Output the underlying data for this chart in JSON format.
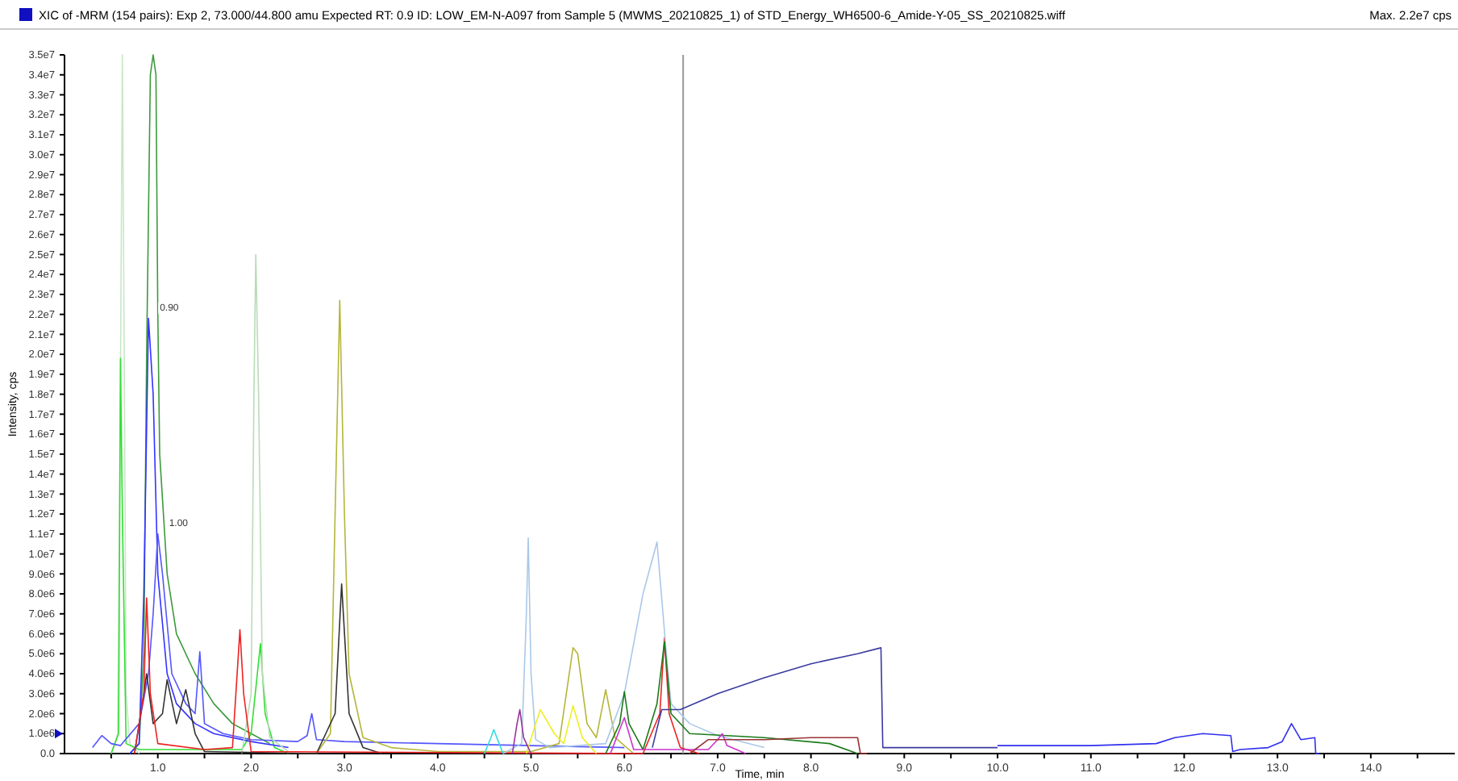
{
  "chart_data": {
    "type": "line",
    "title": "XIC of -MRM (154 pairs): Exp 2, 73.000/44.800 amu Expected RT: 0.9 ID: LOW_EM-N-A097 from Sample 5 (MWMS_20210825_1) of STD_Energy_WH6500-6_Amide-Y-05_SS_20210825.wiff",
    "xlabel": "Time, min",
    "ylabel": "Intensity, cps",
    "annotations": [
      {
        "text": "0.90",
        "x": 0.9,
        "y": 21800000
      },
      {
        "text": "1.00",
        "x": 1.0,
        "y": 11000000
      },
      "Max. 2.2e7 cps"
    ],
    "xlim": [
      0,
      14.9
    ],
    "xticks": [
      {
        "value": 0.5,
        "label": null
      },
      {
        "value": 1,
        "label": "1.0"
      },
      {
        "value": 1.5,
        "label": null
      },
      {
        "value": 2,
        "label": "2.0"
      },
      {
        "value": 2.5,
        "label": null
      },
      {
        "value": 3,
        "label": "3.0"
      },
      {
        "value": 3.5,
        "label": null
      },
      {
        "value": 4,
        "label": "4.0"
      },
      {
        "value": 4.5,
        "label": null
      },
      {
        "value": 5,
        "label": "5.0"
      },
      {
        "value": 5.5,
        "label": null
      },
      {
        "value": 6,
        "label": "6.0"
      },
      {
        "value": 6.5,
        "label": null
      },
      {
        "value": 7,
        "label": "7.0"
      },
      {
        "value": 7.5,
        "label": null
      },
      {
        "value": 8,
        "label": "8.0"
      },
      {
        "value": 8.5,
        "label": null
      },
      {
        "value": 9,
        "label": "9.0"
      },
      {
        "value": 9.5,
        "label": null
      },
      {
        "value": 10,
        "label": "10.0"
      },
      {
        "value": 10.5,
        "label": null
      },
      {
        "value": 11,
        "label": "11.0"
      },
      {
        "value": 11.5,
        "label": null
      },
      {
        "value": 12,
        "label": "12.0"
      },
      {
        "value": 12.5,
        "label": null
      },
      {
        "value": 13,
        "label": "13.0"
      },
      {
        "value": 13.5,
        "label": null
      },
      {
        "value": 14,
        "label": "14.0"
      },
      {
        "value": 14.5,
        "label": null
      }
    ],
    "ylim": [
      0,
      35000000
    ],
    "yticks": [
      {
        "value": 0,
        "label": "0.0"
      },
      {
        "value": 1000000,
        "label": "1.0e6"
      },
      {
        "value": 2000000,
        "label": "2.0e6"
      },
      {
        "value": 3000000,
        "label": "3.0e6"
      },
      {
        "value": 4000000,
        "label": "4.0e6"
      },
      {
        "value": 5000000,
        "label": "5.0e6"
      },
      {
        "value": 6000000,
        "label": "6.0e6"
      },
      {
        "value": 7000000,
        "label": "7.0e6"
      },
      {
        "value": 8000000,
        "label": "8.0e6"
      },
      {
        "value": 9000000,
        "label": "9.0e6"
      },
      {
        "value": 10000000,
        "label": "1.0e7"
      },
      {
        "value": 11000000,
        "label": "1.1e7"
      },
      {
        "value": 12000000,
        "label": "1.2e7"
      },
      {
        "value": 13000000,
        "label": "1.3e7"
      },
      {
        "value": 14000000,
        "label": "1.4e7"
      },
      {
        "value": 15000000,
        "label": "1.5e7"
      },
      {
        "value": 16000000,
        "label": "1.6e7"
      },
      {
        "value": 17000000,
        "label": "1.7e7"
      },
      {
        "value": 18000000,
        "label": "1.8e7"
      },
      {
        "value": 19000000,
        "label": "1.9e7"
      },
      {
        "value": 20000000,
        "label": "2.0e7"
      },
      {
        "value": 21000000,
        "label": "2.1e7"
      },
      {
        "value": 22000000,
        "label": "2.2e7"
      },
      {
        "value": 23000000,
        "label": "2.3e7"
      },
      {
        "value": 24000000,
        "label": "2.4e7"
      },
      {
        "value": 25000000,
        "label": "2.5e7"
      },
      {
        "value": 26000000,
        "label": "2.6e7"
      },
      {
        "value": 27000000,
        "label": "2.7e7"
      },
      {
        "value": 28000000,
        "label": "2.8e7"
      },
      {
        "value": 29000000,
        "label": "2.9e7"
      },
      {
        "value": 30000000,
        "label": "3.0e7"
      },
      {
        "value": 31000000,
        "label": "3.1e7"
      },
      {
        "value": 32000000,
        "label": "3.2e7"
      },
      {
        "value": 33000000,
        "label": "3.3e7"
      },
      {
        "value": 34000000,
        "label": "3.4e7"
      },
      {
        "value": 35000000,
        "label": "3.5e7"
      }
    ],
    "grid": false,
    "marker": "none",
    "line_style": "solid",
    "ref_lines": [
      {
        "axis": "x",
        "value": 6.63,
        "color": "#999999"
      }
    ],
    "series": [
      {
        "color": "#c8e6c8",
        "x": [
          0.5,
          0.57,
          0.6,
          0.62,
          0.64,
          0.66,
          0.7,
          0.8
        ],
        "values": [
          0,
          1000000,
          19000000,
          35000000,
          20000000,
          3000000,
          500000,
          0
        ]
      },
      {
        "color": "#3c9a3c",
        "x": [
          0.7,
          0.8,
          0.85,
          0.88,
          0.92,
          0.95,
          0.98,
          1.0,
          1.02,
          1.1,
          1.2,
          1.4,
          1.6,
          1.8,
          2.0,
          2.2
        ],
        "values": [
          0,
          500000,
          5000000,
          20000000,
          34000000,
          35000000,
          34000000,
          22000000,
          15000000,
          9000000,
          6000000,
          4000000,
          2500000,
          1500000,
          1000000,
          500000
        ]
      },
      {
        "color": "#33dd33",
        "x": [
          0.5,
          0.58,
          0.6,
          0.62,
          0.66,
          0.8,
          1.9,
          2.0,
          2.1,
          2.15,
          2.25,
          2.4
        ],
        "values": [
          0,
          1000000,
          19800000,
          12000000,
          500000,
          200000,
          200000,
          1000000,
          5500000,
          2000000,
          300000,
          0
        ]
      },
      {
        "color": "#3333ff",
        "x": [
          0.7,
          0.8,
          0.85,
          0.9,
          0.95,
          1.0,
          1.1,
          1.2,
          1.4,
          1.6,
          2.0,
          2.4
        ],
        "values": [
          0,
          500000,
          8000000,
          21800000,
          18000000,
          9000000,
          4000000,
          2500000,
          1500000,
          1000000,
          600000,
          300000
        ]
      },
      {
        "color": "#5555ff",
        "x": [
          0.3,
          0.4,
          0.5,
          0.6,
          0.8,
          0.9,
          0.95,
          1.0,
          1.05,
          1.15,
          1.3,
          1.4,
          1.45,
          1.5,
          1.7,
          2.0,
          2.5,
          2.6,
          2.65,
          2.7,
          3.0,
          4.0,
          5.0,
          6.0
        ],
        "values": [
          300000,
          900000,
          500000,
          400000,
          1500000,
          4000000,
          7000000,
          11000000,
          9000000,
          4000000,
          2500000,
          2000000,
          5100000,
          1500000,
          1000000,
          700000,
          600000,
          900000,
          2000000,
          700000,
          600000,
          500000,
          400000,
          300000
        ]
      },
      {
        "color": "#b8dcb8",
        "x": [
          1.9,
          2.0,
          2.03,
          2.05,
          2.08,
          2.12,
          2.2,
          2.4
        ],
        "values": [
          0,
          3000000,
          18000000,
          25000000,
          18000000,
          4000000,
          800000,
          100000
        ]
      },
      {
        "color": "#b5b53a",
        "x": [
          2.7,
          2.85,
          2.9,
          2.95,
          3.0,
          3.05,
          3.2,
          3.5,
          4.0,
          5.0,
          5.3,
          5.45,
          5.5,
          5.6,
          5.7,
          5.8,
          5.9,
          6.1
        ],
        "values": [
          0,
          1000000,
          12000000,
          22700000,
          12000000,
          4000000,
          800000,
          300000,
          100000,
          100000,
          500000,
          5300000,
          5000000,
          1500000,
          800000,
          3200000,
          800000,
          0
        ]
      },
      {
        "color": "#333333",
        "x": [
          0.75,
          0.85,
          0.88,
          0.95,
          1.05,
          1.1,
          1.2,
          1.3,
          1.4,
          1.5,
          2.7,
          2.9,
          2.97,
          3.05,
          3.2,
          3.4
        ],
        "values": [
          0,
          3000000,
          4000000,
          1500000,
          2000000,
          3700000,
          1500000,
          3200000,
          1000000,
          100000,
          0,
          2000000,
          8500000,
          2000000,
          300000,
          0
        ]
      },
      {
        "color": "#ee2222",
        "x": [
          0.75,
          0.85,
          0.88,
          0.92,
          1.0,
          1.5,
          1.8,
          1.88,
          1.92,
          2.0,
          6.2,
          6.38,
          6.43,
          6.48,
          6.6,
          6.8
        ],
        "values": [
          0,
          3000000,
          7800000,
          3000000,
          500000,
          200000,
          300000,
          6200000,
          3000000,
          100000,
          0,
          2000000,
          5800000,
          2000000,
          300000,
          0
        ]
      },
      {
        "color": "#aac8e8",
        "x": [
          4.7,
          4.9,
          4.95,
          4.97,
          5.0,
          5.05,
          5.2,
          5.8,
          6.0,
          6.2,
          6.35,
          6.45,
          6.5,
          6.7,
          7.0,
          7.5
        ],
        "values": [
          0,
          500000,
          7000000,
          10800000,
          4000000,
          700000,
          300000,
          500000,
          3000000,
          8000000,
          10600000,
          5000000,
          2500000,
          1500000,
          900000,
          300000
        ]
      },
      {
        "color": "#3a3aa0",
        "x": [
          6.3,
          6.4,
          6.6,
          7.0,
          7.5,
          8.0,
          8.5,
          8.75,
          8.77,
          9.0,
          10.0
        ],
        "values": [
          300000,
          2200000,
          2200000,
          3000000,
          3800000,
          4500000,
          5000000,
          5300000,
          300000,
          300000,
          300000
        ]
      },
      {
        "color": "#3030ee",
        "x": [
          10.0,
          11.0,
          11.7,
          11.9,
          12.2,
          12.5,
          12.52,
          12.6,
          12.9,
          13.05,
          13.15,
          13.25,
          13.4,
          13.41,
          13.45
        ],
        "values": [
          400000,
          400000,
          500000,
          800000,
          1000000,
          900000,
          100000,
          200000,
          300000,
          600000,
          1500000,
          700000,
          800000,
          0,
          0
        ]
      },
      {
        "color": "#1a7a1a",
        "x": [
          5.8,
          5.95,
          6.0,
          6.05,
          6.2,
          6.35,
          6.43,
          6.5,
          6.7,
          7.5,
          8.2,
          8.5
        ],
        "values": [
          0,
          1500000,
          3100000,
          1500000,
          200000,
          2500000,
          5600000,
          2000000,
          1000000,
          800000,
          500000,
          0
        ]
      },
      {
        "color": "#eeee22",
        "x": [
          4.95,
          5.05,
          5.1,
          5.25,
          5.35,
          5.45,
          5.55,
          5.7
        ],
        "values": [
          0,
          1500000,
          2200000,
          1000000,
          500000,
          2400000,
          800000,
          0
        ]
      },
      {
        "color": "#cc33cc",
        "x": [
          5.85,
          5.95,
          6.0,
          6.1,
          6.9,
          7.0,
          7.05,
          7.1,
          7.3
        ],
        "values": [
          0,
          1200000,
          1800000,
          200000,
          200000,
          700000,
          1000000,
          400000,
          0
        ]
      },
      {
        "color": "#993399",
        "x": [
          4.8,
          4.85,
          4.88,
          4.92,
          5.0
        ],
        "values": [
          0,
          1500000,
          2200000,
          800000,
          0
        ]
      },
      {
        "color": "#33dddd",
        "x": [
          4.5,
          4.57,
          4.6,
          4.65,
          4.7
        ],
        "values": [
          0,
          800000,
          1200000,
          600000,
          0
        ]
      },
      {
        "color": "#993333",
        "x": [
          6.7,
          6.9,
          7.5,
          8.0,
          8.5,
          8.53,
          8.6
        ],
        "values": [
          0,
          700000,
          700000,
          800000,
          800000,
          0,
          0
        ]
      }
    ]
  }
}
